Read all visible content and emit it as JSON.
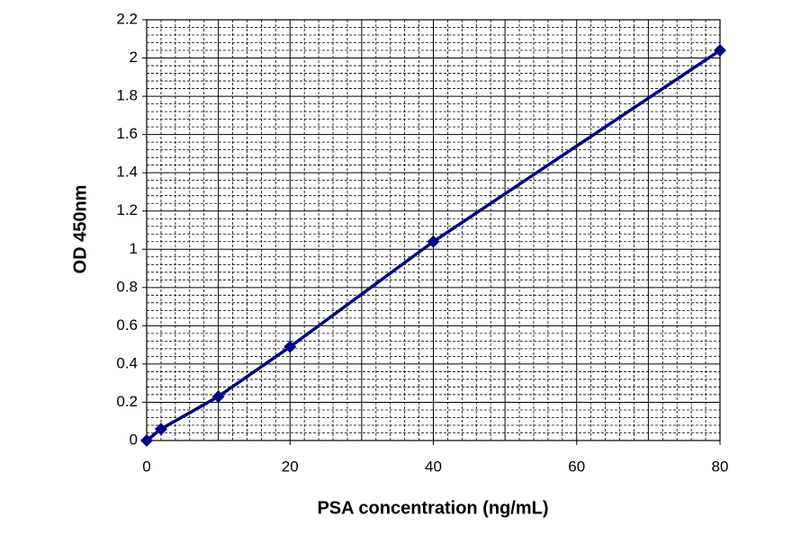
{
  "chart_data": {
    "type": "line",
    "x_label": "PSA concentration (ng/mL)",
    "y_label": "OD 450nm",
    "series": [
      {
        "color": "#000080",
        "x": [
          0,
          2,
          10,
          20,
          40,
          80
        ],
        "values": [
          0.0,
          0.06,
          0.23,
          0.49,
          1.04,
          2.04
        ]
      }
    ],
    "xlim": [
      0,
      80
    ],
    "xticks": [
      0,
      20,
      40,
      60,
      80
    ],
    "ylim": [
      0,
      2.2
    ],
    "yticks": [
      0,
      0.2,
      0.4,
      0.6,
      0.8,
      1,
      1.2,
      1.4,
      1.6,
      1.8,
      2,
      2.2
    ],
    "grid": true,
    "minor_grid": true,
    "markers": "diamond"
  }
}
